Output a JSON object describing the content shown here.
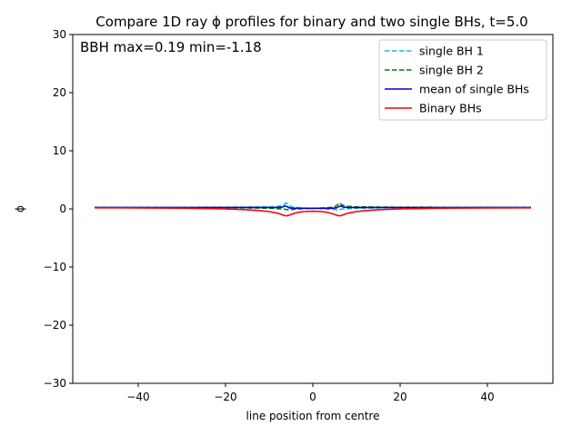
{
  "chart_data": {
    "type": "line",
    "title": "Compare 1D ray ϕ profiles for binary and two single BHs, t=5.0",
    "annotation": "BBH max=0.19 min=-1.18",
    "xlabel": "line position from centre",
    "ylabel": "ϕ",
    "xlim": [
      -55,
      55
    ],
    "ylim": [
      -30,
      30
    ],
    "xticks": [
      -40,
      -20,
      0,
      20,
      40
    ],
    "xtick_labels": [
      "−40",
      "−20",
      "0",
      "20",
      "40"
    ],
    "yticks": [
      -30,
      -20,
      -10,
      0,
      10,
      20,
      30
    ],
    "ytick_labels": [
      "−30",
      "−20",
      "−10",
      "0",
      "10",
      "20",
      "30"
    ],
    "grid": false,
    "legend_position": "top-right",
    "series": [
      {
        "name": "single BH 1",
        "color": "#17becf",
        "linestyle": "dashed",
        "x": [
          -50,
          -40,
          -30,
          -20,
          -15,
          -10,
          -8,
          -7,
          -6.5,
          -6.2,
          -6.0,
          -5.8,
          -5.5,
          -5,
          -4,
          -2,
          0,
          2,
          4,
          5,
          5.5,
          5.8,
          6.0,
          6.2,
          6.5,
          7,
          8,
          10,
          15,
          20,
          30,
          40,
          50
        ],
        "y": [
          0.25,
          0.26,
          0.27,
          0.29,
          0.31,
          0.36,
          0.45,
          0.6,
          0.8,
          1.0,
          1.0,
          0.8,
          0.6,
          0.4,
          0.25,
          0.15,
          0.1,
          0.05,
          -0.05,
          -0.1,
          -0.15,
          -0.1,
          -0.1,
          -0.1,
          -0.05,
          0.0,
          0.05,
          0.12,
          0.18,
          0.21,
          0.23,
          0.25,
          0.26
        ]
      },
      {
        "name": "single BH 2",
        "color": "#008000",
        "linestyle": "dashed",
        "x": [
          -50,
          -40,
          -30,
          -20,
          -15,
          -10,
          -8,
          -7,
          -6.5,
          -6.2,
          -6.0,
          -5.8,
          -5.5,
          -5,
          -4,
          -2,
          0,
          2,
          4,
          5,
          5.5,
          5.8,
          6.0,
          6.2,
          6.5,
          7,
          8,
          10,
          15,
          20,
          30,
          40,
          50
        ],
        "y": [
          0.26,
          0.25,
          0.23,
          0.21,
          0.18,
          0.12,
          0.05,
          0.0,
          -0.05,
          -0.1,
          -0.1,
          -0.1,
          -0.15,
          -0.1,
          -0.05,
          0.05,
          0.1,
          0.15,
          0.25,
          0.4,
          0.6,
          0.8,
          1.0,
          1.0,
          0.8,
          0.6,
          0.45,
          0.36,
          0.31,
          0.29,
          0.27,
          0.26,
          0.25
        ]
      },
      {
        "name": "mean of single BHs",
        "color": "#0000cc",
        "linestyle": "solid",
        "x": [
          -50,
          -40,
          -30,
          -20,
          -15,
          -10,
          -8,
          -7,
          -6.5,
          -6.2,
          -6.0,
          -5.8,
          -5.5,
          -5,
          -4,
          -2,
          0,
          2,
          4,
          5,
          5.5,
          5.8,
          6.0,
          6.2,
          6.5,
          7,
          8,
          10,
          15,
          20,
          30,
          40,
          50
        ],
        "y": [
          0.25,
          0.25,
          0.25,
          0.25,
          0.24,
          0.24,
          0.25,
          0.3,
          0.5,
          0.45,
          0.45,
          0.35,
          0.2,
          0.15,
          0.1,
          0.1,
          0.1,
          0.1,
          0.1,
          0.15,
          0.2,
          0.35,
          0.45,
          0.45,
          0.5,
          0.3,
          0.25,
          0.24,
          0.24,
          0.25,
          0.25,
          0.25,
          0.25
        ]
      },
      {
        "name": "Binary BHs",
        "color": "#ff0000",
        "linestyle": "solid",
        "x": [
          -50,
          -40,
          -30,
          -20,
          -15,
          -12,
          -10,
          -8,
          -7,
          -6.5,
          -6.0,
          -5.5,
          -5,
          -4,
          -3,
          -2,
          0,
          2,
          3,
          4,
          5,
          5.5,
          6.0,
          6.5,
          7,
          8,
          10,
          12,
          15,
          20,
          30,
          40,
          50
        ],
        "y": [
          0.19,
          0.17,
          0.12,
          0.0,
          -0.15,
          -0.3,
          -0.45,
          -0.75,
          -1.0,
          -1.15,
          -1.18,
          -1.1,
          -0.95,
          -0.7,
          -0.55,
          -0.45,
          -0.4,
          -0.45,
          -0.55,
          -0.7,
          -0.95,
          -1.1,
          -1.18,
          -1.15,
          -1.0,
          -0.75,
          -0.45,
          -0.3,
          -0.15,
          0.0,
          0.12,
          0.17,
          0.19
        ]
      }
    ]
  }
}
